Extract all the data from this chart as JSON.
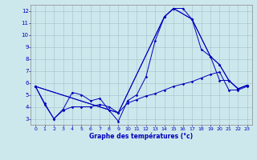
{
  "xlabel": "Graphe des températures (°c)",
  "xlim": [
    -0.5,
    23.5
  ],
  "ylim": [
    2.5,
    12.5
  ],
  "yticks": [
    3,
    4,
    5,
    6,
    7,
    8,
    9,
    10,
    11,
    12
  ],
  "xticks": [
    0,
    1,
    2,
    3,
    4,
    5,
    6,
    7,
    8,
    9,
    10,
    11,
    12,
    13,
    14,
    15,
    16,
    17,
    18,
    19,
    20,
    21,
    22,
    23
  ],
  "background_color": "#cde8ed",
  "grid_color": "#aac8d0",
  "line_color": "#0000bb",
  "series": [
    {
      "x": [
        0,
        1,
        2,
        3,
        4,
        5,
        6,
        7,
        8,
        9,
        10,
        11,
        12,
        13,
        14,
        15,
        16,
        17,
        18,
        19,
        20,
        21,
        22,
        23
      ],
      "y": [
        5.7,
        4.3,
        3.0,
        3.8,
        5.2,
        5.0,
        4.5,
        4.7,
        3.7,
        2.8,
        4.5,
        5.0,
        6.5,
        9.5,
        11.5,
        12.2,
        12.2,
        11.3,
        8.8,
        8.2,
        7.5,
        6.2,
        5.5,
        5.8
      ]
    },
    {
      "x": [
        0,
        1,
        2,
        3,
        4,
        5,
        6,
        7,
        8,
        9,
        10,
        11,
        12,
        13,
        14,
        15,
        16,
        17,
        18,
        19,
        20,
        21,
        22,
        23
      ],
      "y": [
        5.7,
        4.2,
        3.0,
        3.7,
        4.0,
        4.0,
        4.0,
        4.2,
        4.0,
        3.5,
        4.3,
        4.6,
        4.9,
        5.1,
        5.4,
        5.7,
        5.9,
        6.1,
        6.4,
        6.7,
        6.9,
        5.4,
        5.4,
        5.7
      ]
    },
    {
      "x": [
        0,
        9,
        14,
        15,
        17,
        19,
        20,
        21,
        22,
        23
      ],
      "y": [
        5.7,
        3.5,
        11.5,
        12.2,
        11.3,
        8.2,
        7.5,
        6.2,
        5.5,
        5.8
      ]
    },
    {
      "x": [
        0,
        9,
        14,
        15,
        17,
        19,
        20,
        21,
        22,
        23
      ],
      "y": [
        5.7,
        3.5,
        11.5,
        12.2,
        11.3,
        8.2,
        6.2,
        6.2,
        5.5,
        5.8
      ]
    }
  ]
}
